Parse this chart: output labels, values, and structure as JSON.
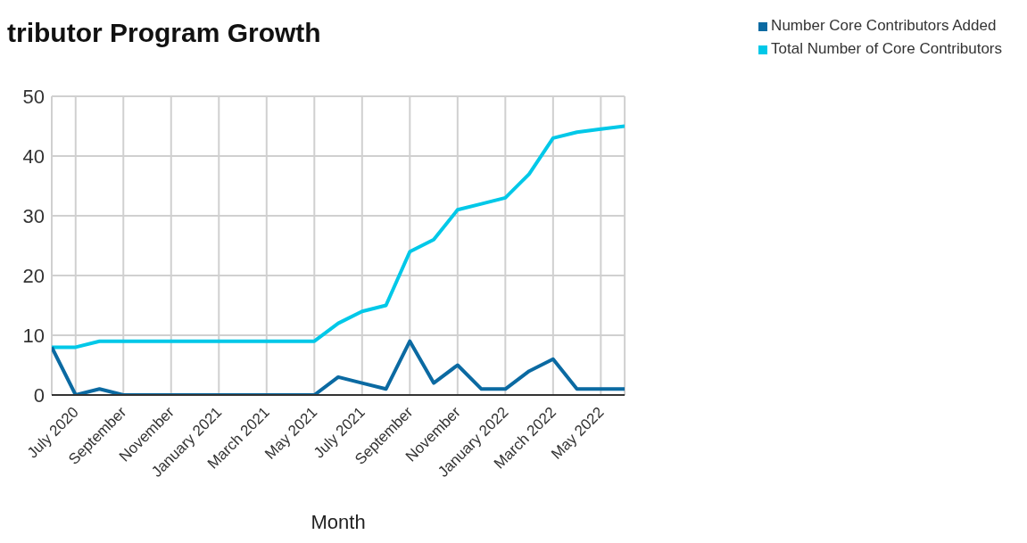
{
  "chart_data": {
    "type": "line",
    "title": "tributor Program Growth",
    "xlabel": "Month",
    "categories": [
      null,
      "July 2020",
      null,
      "September",
      null,
      "November",
      null,
      "January 2021",
      null,
      "March 2021",
      null,
      "May 2021",
      null,
      "July 2021",
      null,
      "September",
      null,
      "November",
      null,
      "January 2022",
      null,
      "March 2022",
      null,
      "May 2022",
      null
    ],
    "series": [
      {
        "name": "Total Number of Core Contributors",
        "color": "#00c8e8",
        "values": [
          8,
          8,
          9,
          9,
          9,
          9,
          9,
          9,
          9,
          9,
          9,
          9,
          12,
          14,
          15,
          24,
          26,
          31,
          32,
          33,
          37,
          43,
          44,
          44.5,
          45
        ]
      },
      {
        "name": "Number Core Contributors Added",
        "color": "#0b6aa2",
        "values": [
          8,
          0,
          1,
          0,
          0,
          0,
          0,
          0,
          0,
          0,
          0,
          0,
          3,
          2,
          1,
          9,
          2,
          5,
          1,
          1,
          4,
          6,
          1,
          1,
          1
        ]
      }
    ],
    "ylim": [
      0,
      50
    ],
    "yticks": [
      0,
      10,
      20,
      30,
      40,
      50
    ],
    "grid": true,
    "legend": "top right",
    "marker": "none",
    "line_style": "solid"
  }
}
